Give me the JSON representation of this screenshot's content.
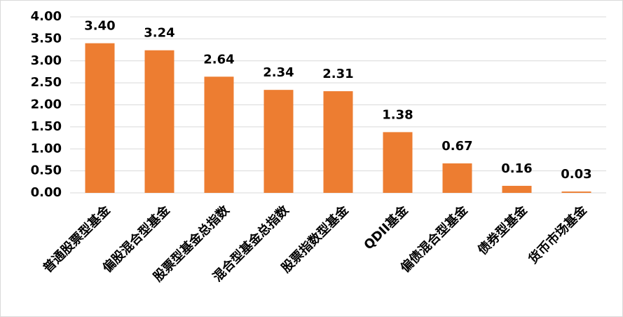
{
  "chart_data": {
    "type": "bar",
    "categories": [
      "普通股票型基金",
      "偏股混合型基金",
      "股票型基金总指数",
      "混合型基金总指数",
      "股票指数型基金",
      "QDII基金",
      "偏债混合型基金",
      "债券型基金",
      "货币市场基金"
    ],
    "values": [
      3.4,
      3.24,
      2.64,
      2.34,
      2.31,
      1.38,
      0.67,
      0.16,
      0.03
    ],
    "value_labels": [
      "3.40",
      "3.24",
      "2.64",
      "2.34",
      "2.31",
      "1.38",
      "0.67",
      "0.16",
      "0.03"
    ],
    "color": "#ed7d31",
    "ylim": [
      0,
      4
    ],
    "yticks": [
      {
        "value": 0,
        "label": "0.00"
      },
      {
        "value": 0.5,
        "label": "0.50"
      },
      {
        "value": 1,
        "label": "1.00"
      },
      {
        "value": 1.5,
        "label": "1.50"
      },
      {
        "value": 2,
        "label": "2.00"
      },
      {
        "value": 2.5,
        "label": "2.50"
      },
      {
        "value": 3,
        "label": "3.00"
      },
      {
        "value": 3.5,
        "label": "3.50"
      },
      {
        "value": 4,
        "label": "4.00"
      }
    ],
    "grid": true
  }
}
